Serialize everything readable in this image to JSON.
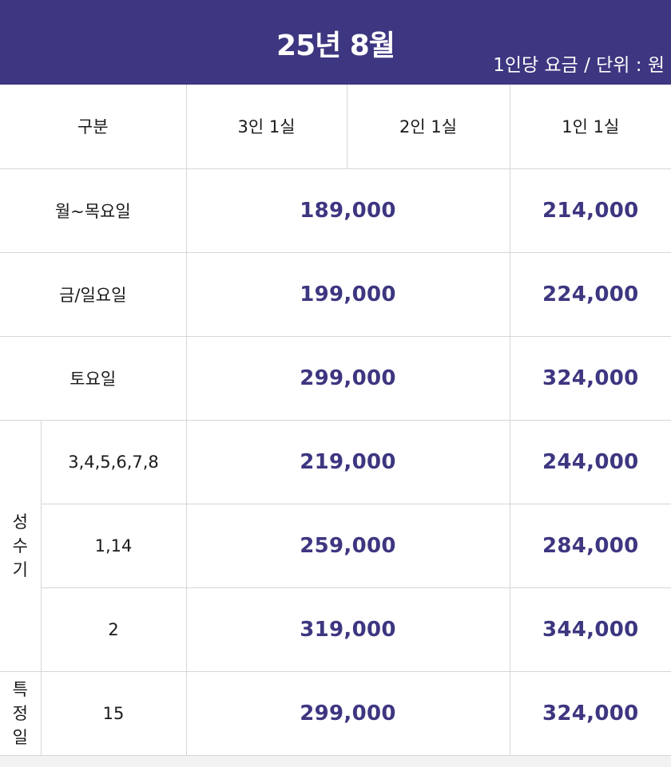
{
  "header": {
    "title": "25년 8월",
    "unit_note": "1인당 요금 / 단위 : 원"
  },
  "table": {
    "header_row": {
      "category": "구분",
      "col_3": "3인 1실",
      "col_2": "2인 1실",
      "col_1": "1인 1실"
    },
    "weekday": {
      "label": "월~목요일",
      "price_shared": "189,000",
      "price_single": "214,000"
    },
    "fri_sun": {
      "label": "금/일요일",
      "price_shared": "199,000",
      "price_single": "224,000"
    },
    "saturday": {
      "label": "토요일",
      "price_shared": "299,000",
      "price_single": "324,000"
    },
    "peak": {
      "label_chars": [
        "성",
        "수",
        "기"
      ],
      "rows": [
        {
          "dates": "3,4,5,6,7,8",
          "price_shared": "219,000",
          "price_single": "244,000"
        },
        {
          "dates": "1,14",
          "price_shared": "259,000",
          "price_single": "284,000"
        },
        {
          "dates": "2",
          "price_shared": "319,000",
          "price_single": "344,000"
        }
      ]
    },
    "special": {
      "label_chars": [
        "특",
        "정",
        "일"
      ],
      "dates": "15",
      "price_shared": "299,000",
      "price_single": "324,000"
    }
  },
  "colors": {
    "header_bg": "#3d3680",
    "price_text": "#3d3680",
    "border": "#d6d6d6"
  }
}
